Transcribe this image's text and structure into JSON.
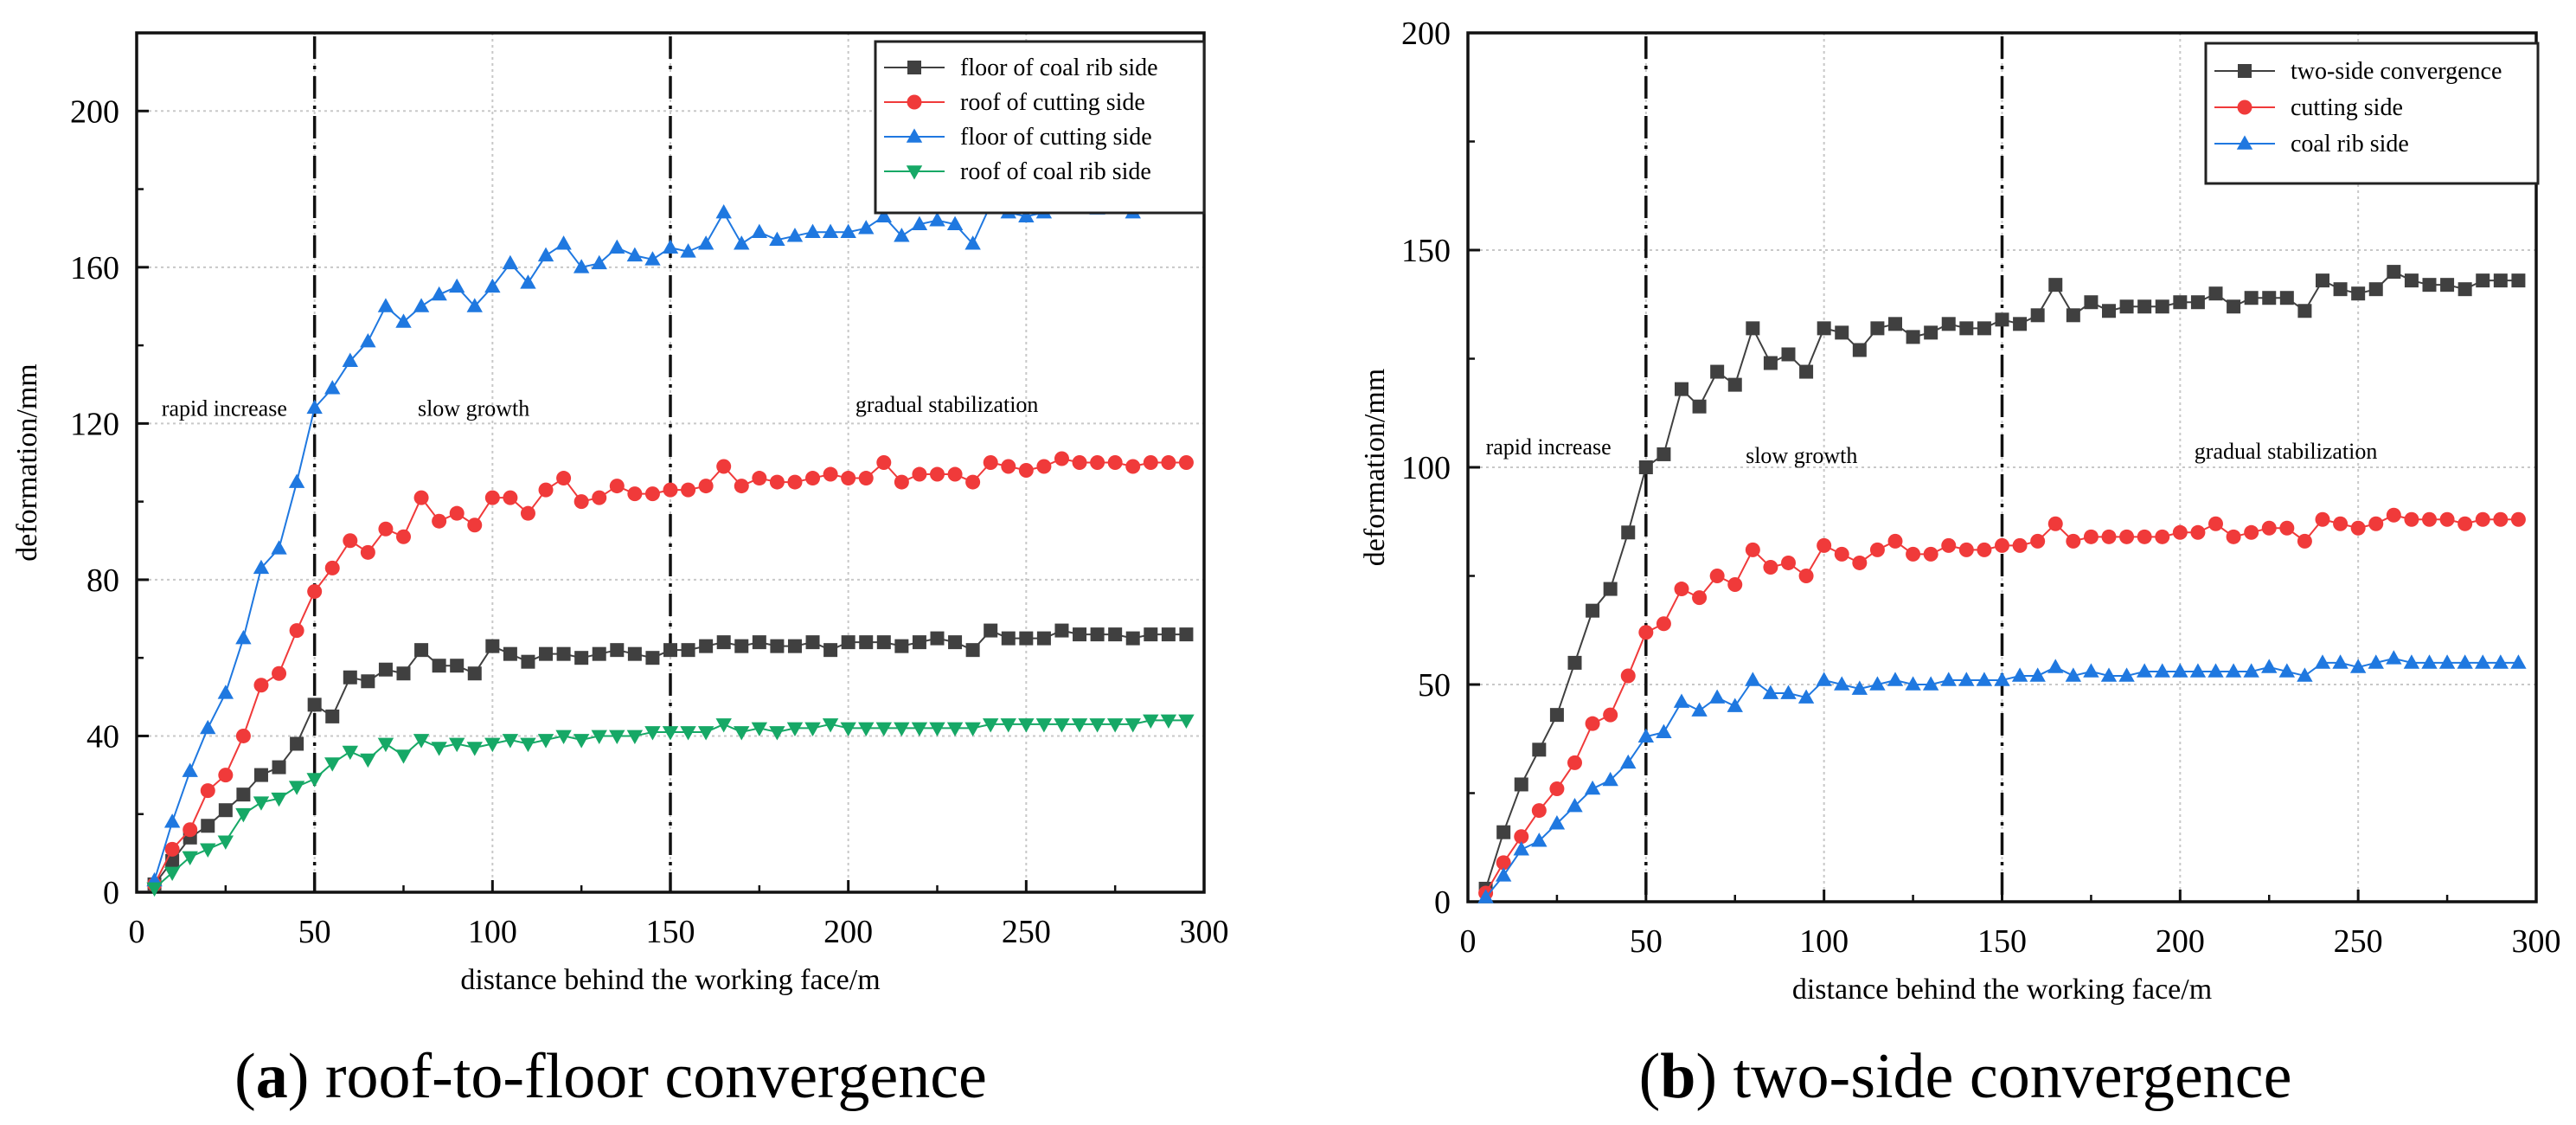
{
  "chart_data": [
    {
      "type": "line",
      "caption_letter": "a",
      "caption_text": " roof-to-floor convergence",
      "xlabel": "distance behind the working face/m",
      "ylabel": "deformation/mm",
      "xlim": [
        0,
        300
      ],
      "ylim": [
        0,
        220
      ],
      "xticks": [
        0,
        50,
        100,
        150,
        200,
        250,
        300
      ],
      "yticks": [
        0,
        40,
        80,
        120,
        160,
        200
      ],
      "grid": true,
      "legend_position": "top-right",
      "phase_boundaries": [
        50,
        150
      ],
      "phases": [
        {
          "label": "rapid increase",
          "x": 7,
          "y": 122
        },
        {
          "label": "slow growth",
          "x": 79,
          "y": 122
        },
        {
          "label": "gradual stabilization",
          "x": 202,
          "y": 123
        }
      ],
      "x": [
        5,
        10,
        15,
        20,
        25,
        30,
        35,
        40,
        45,
        50,
        55,
        60,
        65,
        70,
        75,
        80,
        85,
        90,
        95,
        100,
        105,
        110,
        115,
        120,
        125,
        130,
        135,
        140,
        145,
        150,
        155,
        160,
        165,
        170,
        175,
        180,
        185,
        190,
        195,
        200,
        205,
        210,
        215,
        220,
        225,
        230,
        235,
        240,
        245,
        250,
        255,
        260,
        265,
        270,
        275,
        280,
        285,
        290,
        295
      ],
      "series": [
        {
          "name": "floor of coal rib side",
          "color": "#404040",
          "marker": "square",
          "values": [
            2,
            8,
            14,
            17,
            21,
            25,
            30,
            32,
            38,
            48,
            45,
            55,
            54,
            57,
            56,
            62,
            58,
            58,
            56,
            63,
            61,
            59,
            61,
            61,
            60,
            61,
            62,
            61,
            60,
            62,
            62,
            63,
            64,
            63,
            64,
            63,
            63,
            64,
            62,
            64,
            64,
            64,
            63,
            64,
            65,
            64,
            62,
            67,
            65,
            65,
            65,
            67,
            66,
            66,
            66,
            65,
            66,
            66,
            66
          ]
        },
        {
          "name": "roof of  cutting side",
          "color": "#f03a3a",
          "marker": "circle",
          "values": [
            2,
            11,
            16,
            26,
            30,
            40,
            53,
            56,
            67,
            77,
            83,
            90,
            87,
            93,
            91,
            101,
            95,
            97,
            94,
            101,
            101,
            97,
            103,
            106,
            100,
            101,
            104,
            102,
            102,
            103,
            103,
            104,
            109,
            104,
            106,
            105,
            105,
            106,
            107,
            106,
            106,
            110,
            105,
            107,
            107,
            107,
            105,
            110,
            109,
            108,
            109,
            111,
            110,
            110,
            110,
            109,
            110,
            110,
            110
          ]
        },
        {
          "name": "floor of  cutting side",
          "color": "#1f78e0",
          "marker": "triangle-up",
          "values": [
            3,
            18,
            31,
            42,
            51,
            65,
            83,
            88,
            105,
            124,
            129,
            136,
            141,
            150,
            146,
            150,
            153,
            155,
            150,
            155,
            161,
            156,
            163,
            166,
            160,
            161,
            165,
            163,
            162,
            165,
            164,
            166,
            174,
            166,
            169,
            167,
            168,
            169,
            169,
            169,
            170,
            173,
            168,
            171,
            172,
            171,
            166,
            176,
            174,
            173,
            174,
            178,
            176,
            175,
            176,
            174,
            176,
            176,
            176
          ]
        },
        {
          "name": "roof of  coal rib side",
          "color": "#16a866",
          "marker": "triangle-down",
          "values": [
            1,
            5,
            9,
            11,
            13,
            20,
            23,
            24,
            27,
            29,
            33,
            36,
            34,
            38,
            35,
            39,
            37,
            38,
            37,
            38,
            39,
            38,
            39,
            40,
            39,
            40,
            40,
            40,
            41,
            41,
            41,
            41,
            43,
            41,
            42,
            41,
            42,
            42,
            43,
            42,
            42,
            42,
            42,
            42,
            42,
            42,
            42,
            43,
            43,
            43,
            43,
            43,
            43,
            43,
            43,
            43,
            44,
            44,
            44
          ]
        }
      ]
    },
    {
      "type": "line",
      "caption_letter": "b",
      "caption_text": " two-side convergence",
      "xlabel": "distance behind the working face/m",
      "ylabel": "deformation/mm",
      "xlim": [
        0,
        300
      ],
      "ylim": [
        0,
        200
      ],
      "xticks": [
        0,
        50,
        100,
        150,
        200,
        250,
        300
      ],
      "yticks": [
        0,
        50,
        100,
        150,
        200
      ],
      "grid": true,
      "legend_position": "top-right",
      "phase_boundaries": [
        50,
        150
      ],
      "phases": [
        {
          "label": "rapid increase",
          "x": 5,
          "y": 103
        },
        {
          "label": "slow growth",
          "x": 78,
          "y": 101
        },
        {
          "label": "gradual stabilization",
          "x": 204,
          "y": 102
        }
      ],
      "x": [
        5,
        10,
        15,
        20,
        25,
        30,
        35,
        40,
        45,
        50,
        55,
        60,
        65,
        70,
        75,
        80,
        85,
        90,
        95,
        100,
        105,
        110,
        115,
        120,
        125,
        130,
        135,
        140,
        145,
        150,
        155,
        160,
        165,
        170,
        175,
        180,
        185,
        190,
        195,
        200,
        205,
        210,
        215,
        220,
        225,
        230,
        235,
        240,
        245,
        250,
        255,
        260,
        265,
        270,
        275,
        280,
        285,
        290,
        295
      ],
      "series": [
        {
          "name": "two-side convergence",
          "color": "#404040",
          "marker": "square",
          "values": [
            3,
            16,
            27,
            35,
            43,
            55,
            67,
            72,
            85,
            100,
            103,
            118,
            114,
            122,
            119,
            132,
            124,
            126,
            122,
            132,
            131,
            127,
            132,
            133,
            130,
            131,
            133,
            132,
            132,
            134,
            133,
            135,
            142,
            135,
            138,
            136,
            137,
            137,
            137,
            138,
            138,
            140,
            137,
            139,
            139,
            139,
            136,
            143,
            141,
            140,
            141,
            145,
            143,
            142,
            142,
            141,
            143,
            143,
            143
          ]
        },
        {
          "name": "cutting side",
          "color": "#f03a3a",
          "marker": "circle",
          "values": [
            2,
            9,
            15,
            21,
            26,
            32,
            41,
            43,
            52,
            62,
            64,
            72,
            70,
            75,
            73,
            81,
            77,
            78,
            75,
            82,
            80,
            78,
            81,
            83,
            80,
            80,
            82,
            81,
            81,
            82,
            82,
            83,
            87,
            83,
            84,
            84,
            84,
            84,
            84,
            85,
            85,
            87,
            84,
            85,
            86,
            86,
            83,
            88,
            87,
            86,
            87,
            89,
            88,
            88,
            88,
            87,
            88,
            88,
            88
          ]
        },
        {
          "name": "coal rib side",
          "color": "#1f78e0",
          "marker": "triangle-up",
          "values": [
            1,
            6,
            12,
            14,
            18,
            22,
            26,
            28,
            32,
            38,
            39,
            46,
            44,
            47,
            45,
            51,
            48,
            48,
            47,
            51,
            50,
            49,
            50,
            51,
            50,
            50,
            51,
            51,
            51,
            51,
            52,
            52,
            54,
            52,
            53,
            52,
            52,
            53,
            53,
            53,
            53,
            53,
            53,
            53,
            54,
            53,
            52,
            55,
            55,
            54,
            55,
            56,
            55,
            55,
            55,
            55,
            55,
            55,
            55
          ]
        }
      ]
    }
  ]
}
